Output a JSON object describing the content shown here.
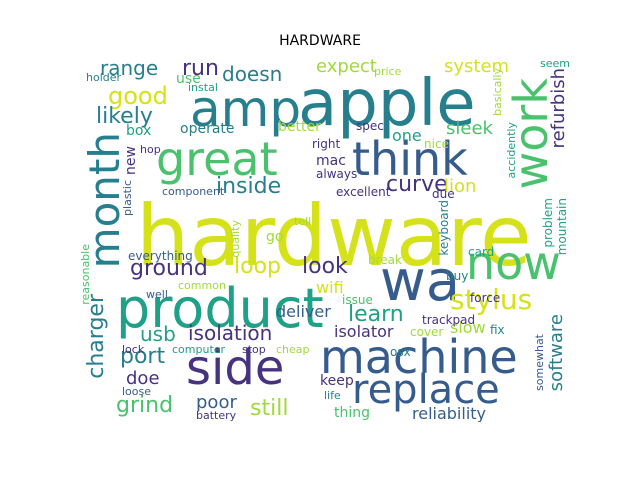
{
  "title": "HARDWARE",
  "palette": {
    "yellow": "#d5e21a",
    "lime": "#a0da39",
    "green": "#4ac16d",
    "teal": "#1fa187",
    "cyan": "#277f8e",
    "blue": "#365c8d",
    "indigo": "#46327e",
    "purple": "#440154"
  },
  "words": [
    {
      "text": "hardware",
      "color": "yellow",
      "name": "word-hardware"
    },
    {
      "text": "apple",
      "color": "cyan",
      "name": "word-apple"
    },
    {
      "text": "amp",
      "color": "cyan",
      "name": "word-amp"
    },
    {
      "text": "wa",
      "color": "blue",
      "name": "word-wa"
    },
    {
      "text": "product",
      "color": "teal",
      "name": "word-product"
    },
    {
      "text": "machine",
      "color": "blue",
      "name": "word-machine"
    },
    {
      "text": "side",
      "color": "indigo",
      "name": "word-side"
    },
    {
      "text": "replace",
      "color": "blue",
      "name": "word-replace"
    },
    {
      "text": "great",
      "color": "green",
      "name": "word-great"
    },
    {
      "text": "think",
      "color": "blue",
      "name": "word-think"
    },
    {
      "text": "work",
      "color": "green",
      "name": "word-work"
    },
    {
      "text": "now",
      "color": "green",
      "name": "word-now"
    },
    {
      "text": "month",
      "color": "cyan",
      "name": "word-month"
    },
    {
      "text": "stylus",
      "color": "yellow",
      "name": "word-stylus"
    },
    {
      "text": "curve",
      "color": "indigo",
      "name": "word-curve"
    },
    {
      "text": "ground",
      "color": "indigo",
      "name": "word-ground"
    },
    {
      "text": "look",
      "color": "indigo",
      "name": "word-look"
    },
    {
      "text": "learn",
      "color": "teal",
      "name": "word-learn"
    },
    {
      "text": "isolation",
      "color": "indigo",
      "name": "word-isolation"
    },
    {
      "text": "port",
      "color": "cyan",
      "name": "word-port"
    },
    {
      "text": "doe",
      "color": "indigo",
      "name": "word-doe"
    },
    {
      "text": "grind",
      "color": "green",
      "name": "word-grind"
    },
    {
      "text": "charger",
      "color": "cyan",
      "name": "word-charger"
    },
    {
      "text": "usb",
      "color": "teal",
      "name": "word-usb"
    },
    {
      "text": "still",
      "color": "lime",
      "name": "word-still"
    },
    {
      "text": "poor",
      "color": "blue",
      "name": "word-poor"
    },
    {
      "text": "loop",
      "color": "yellow",
      "name": "word-loop"
    },
    {
      "text": "inside",
      "color": "cyan",
      "name": "word-inside"
    },
    {
      "text": "good",
      "color": "yellow",
      "name": "word-good"
    },
    {
      "text": "likely",
      "color": "cyan",
      "name": "word-likely"
    },
    {
      "text": "range",
      "color": "cyan",
      "name": "word-range"
    },
    {
      "text": "run",
      "color": "indigo",
      "name": "word-run"
    },
    {
      "text": "doesn",
      "color": "cyan",
      "name": "word-doesn"
    },
    {
      "text": "expect",
      "color": "lime",
      "name": "word-expect"
    },
    {
      "text": "system",
      "color": "yellow",
      "name": "word-system"
    },
    {
      "text": "refurbish",
      "color": "indigo",
      "name": "word-refurbish"
    },
    {
      "text": "sleek",
      "color": "green",
      "name": "word-sleek"
    },
    {
      "text": "lion",
      "color": "yellow",
      "name": "word-lion"
    },
    {
      "text": "software",
      "color": "cyan",
      "name": "word-software"
    },
    {
      "text": "reliability",
      "color": "blue",
      "name": "word-reliability"
    },
    {
      "text": "isolator",
      "color": "indigo",
      "name": "word-isolator"
    },
    {
      "text": "deliver",
      "color": "blue",
      "name": "word-deliver"
    },
    {
      "text": "wifi",
      "color": "yellow",
      "name": "word-wifi"
    },
    {
      "text": "keep",
      "color": "indigo",
      "name": "word-keep"
    },
    {
      "text": "thing",
      "color": "green",
      "name": "word-thing"
    },
    {
      "text": "slow",
      "color": "lime",
      "name": "word-slow"
    },
    {
      "text": "operate",
      "color": "cyan",
      "name": "word-operate"
    },
    {
      "text": "better",
      "color": "lime",
      "name": "word-better"
    },
    {
      "text": "mac",
      "color": "indigo",
      "name": "word-mac"
    },
    {
      "text": "one",
      "color": "teal",
      "name": "word-one"
    },
    {
      "text": "box",
      "color": "teal",
      "name": "word-box"
    },
    {
      "text": "new",
      "color": "indigo",
      "name": "word-new"
    },
    {
      "text": "use",
      "color": "green",
      "name": "word-use"
    },
    {
      "text": "everything",
      "color": "blue",
      "name": "word-everything"
    },
    {
      "text": "go",
      "color": "lime",
      "name": "word-go"
    },
    {
      "text": "trackpad",
      "color": "indigo",
      "name": "word-trackpad"
    },
    {
      "text": "fix",
      "color": "cyan",
      "name": "word-fix"
    },
    {
      "text": "osx",
      "color": "cyan",
      "name": "word-osx"
    },
    {
      "text": "cover",
      "color": "lime",
      "name": "word-cover"
    },
    {
      "text": "issue",
      "color": "green",
      "name": "word-issue"
    },
    {
      "text": "break",
      "color": "lime",
      "name": "word-break"
    },
    {
      "text": "buy",
      "color": "cyan",
      "name": "word-buy"
    },
    {
      "text": "force",
      "color": "indigo",
      "name": "word-force"
    },
    {
      "text": "card",
      "color": "teal",
      "name": "word-card"
    },
    {
      "text": "problem",
      "color": "teal",
      "name": "word-problem"
    },
    {
      "text": "mountain",
      "color": "teal",
      "name": "word-mountain"
    },
    {
      "text": "keyboard",
      "color": "cyan",
      "name": "word-keyboard"
    },
    {
      "text": "excellent",
      "color": "indigo",
      "name": "word-excellent"
    },
    {
      "text": "due",
      "color": "indigo",
      "name": "word-due"
    },
    {
      "text": "always",
      "color": "indigo",
      "name": "word-always"
    },
    {
      "text": "right",
      "color": "indigo",
      "name": "word-right"
    },
    {
      "text": "spec",
      "color": "indigo",
      "name": "word-spec"
    },
    {
      "text": "nice",
      "color": "lime",
      "name": "word-nice"
    },
    {
      "text": "component",
      "color": "blue",
      "name": "word-component"
    },
    {
      "text": "hop",
      "color": "indigo",
      "name": "word-hop"
    },
    {
      "text": "plastic",
      "color": "blue",
      "name": "word-plastic"
    },
    {
      "text": "reasonable",
      "color": "green",
      "name": "word-reasonable"
    },
    {
      "text": "quality",
      "color": "lime",
      "name": "word-quality"
    },
    {
      "text": "tell",
      "color": "lime",
      "name": "word-tell"
    },
    {
      "text": "common",
      "color": "lime",
      "name": "word-common"
    },
    {
      "text": "well",
      "color": "blue",
      "name": "word-well"
    },
    {
      "text": "lock",
      "color": "indigo",
      "name": "word-lock"
    },
    {
      "text": "computer",
      "color": "teal",
      "name": "word-computer"
    },
    {
      "text": "stop",
      "color": "indigo",
      "name": "word-stop"
    },
    {
      "text": "cheap",
      "color": "lime",
      "name": "word-cheap"
    },
    {
      "text": "loose",
      "color": "blue",
      "name": "word-loose"
    },
    {
      "text": "battery",
      "color": "indigo",
      "name": "word-battery"
    },
    {
      "text": "life",
      "color": "cyan",
      "name": "word-life"
    },
    {
      "text": "holder",
      "color": "cyan",
      "name": "word-holder"
    },
    {
      "text": "instal",
      "color": "teal",
      "name": "word-instal"
    },
    {
      "text": "price",
      "color": "lime",
      "name": "word-price"
    },
    {
      "text": "basically",
      "color": "lime",
      "name": "word-basically"
    },
    {
      "text": "accidently",
      "color": "teal",
      "name": "word-accidently"
    },
    {
      "text": "seem",
      "color": "teal",
      "name": "word-seem"
    },
    {
      "text": "somewhat",
      "color": "blue",
      "name": "word-somewhat"
    }
  ]
}
